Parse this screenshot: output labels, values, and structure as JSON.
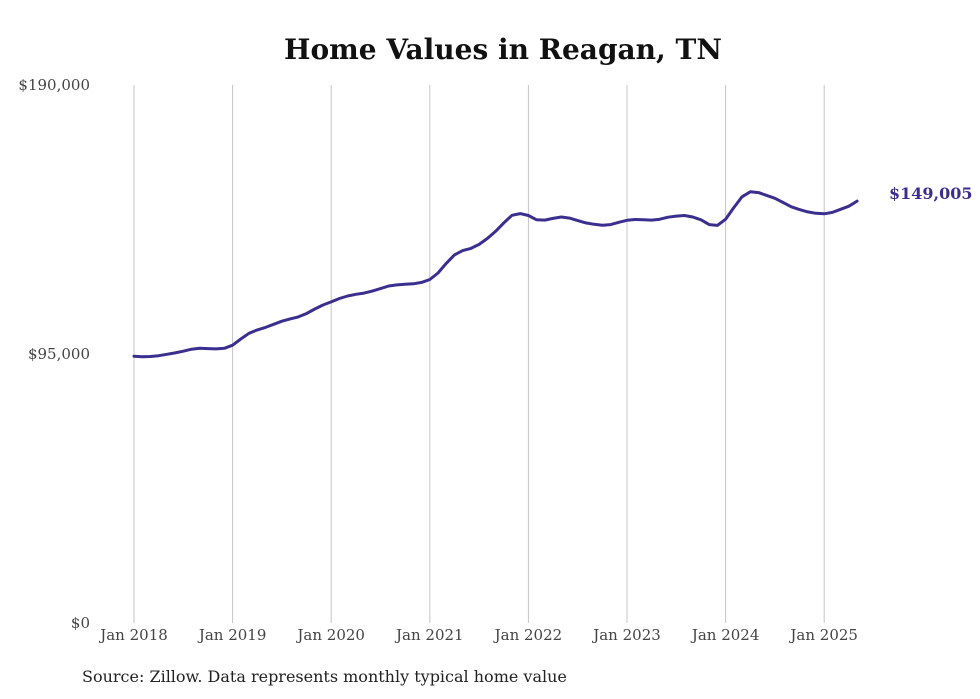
{
  "chart_data": {
    "type": "line",
    "title": "Home Values in Reagan, TN",
    "xlabel": "",
    "ylabel": "",
    "x_ticks": [
      "Jan 2018",
      "Jan 2019",
      "Jan 2020",
      "Jan 2021",
      "Jan 2022",
      "Jan 2023",
      "Jan 2024",
      "Jan 2025"
    ],
    "y_ticks": [
      {
        "value": 190000,
        "label": "$190,000"
      },
      {
        "value": 95000,
        "label": "$95,000"
      },
      {
        "value": 0,
        "label": "$0"
      }
    ],
    "ylim": [
      0,
      190000
    ],
    "x_start": "2018-01",
    "grid": "vertical",
    "line_color": "#3a2f8f",
    "end_label": "$149,005",
    "series": [
      {
        "name": "",
        "values": [
          94200,
          94000,
          94100,
          94400,
          94900,
          95400,
          96000,
          96700,
          97000,
          96900,
          96800,
          97000,
          98100,
          100300,
          102300,
          103500,
          104400,
          105500,
          106600,
          107400,
          108100,
          109300,
          110900,
          112300,
          113400,
          114600,
          115500,
          116100,
          116500,
          117200,
          118100,
          119000,
          119400,
          119600,
          119800,
          120300,
          121300,
          123600,
          127000,
          130000,
          131500,
          132300,
          133700,
          135800,
          138300,
          141300,
          144000,
          144600,
          143900,
          142400,
          142300,
          142900,
          143400,
          143000,
          142100,
          141300,
          140800,
          140500,
          140700,
          141500,
          142200,
          142500,
          142400,
          142300,
          142600,
          143300,
          143700,
          143900,
          143400,
          142400,
          140700,
          140400,
          142600,
          146700,
          150500,
          152300,
          152000,
          151000,
          150000,
          148500,
          147000,
          146000,
          145200,
          144700,
          144500,
          145000,
          146100,
          147200,
          149005
        ]
      }
    ]
  },
  "footer": {
    "source": "Source: Zillow. Data represents monthly typical home value"
  }
}
